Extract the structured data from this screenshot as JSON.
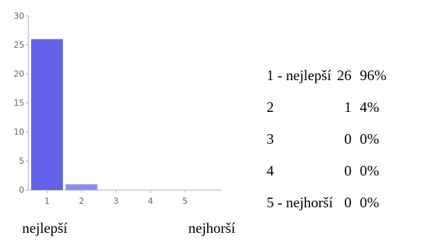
{
  "chart_data": {
    "type": "bar",
    "categories": [
      "1",
      "2",
      "3",
      "4",
      "5"
    ],
    "values": [
      26,
      1,
      0,
      0,
      0
    ],
    "ylim": [
      0,
      30
    ],
    "yticks": [
      0,
      5,
      10,
      15,
      20,
      25,
      30
    ],
    "grid": false,
    "bar_colors": [
      "#6262e8",
      "#8c8cf0",
      "#8c8cf0",
      "#8c8cf0",
      "#8c8cf0"
    ],
    "axis_color": "#aaaaaa",
    "tick_label_color": "#666666"
  },
  "scale_labels": {
    "left": "nejlepší",
    "right": "nejhorší"
  },
  "summary": [
    {
      "label": "1 - nejlepší",
      "count": "26",
      "percent": "96%"
    },
    {
      "label": "2",
      "count": "1",
      "percent": "4%"
    },
    {
      "label": "3",
      "count": "0",
      "percent": "0%"
    },
    {
      "label": "4",
      "count": "0",
      "percent": "0%"
    },
    {
      "label": "5 - nejhorší",
      "count": "0",
      "percent": "0%"
    }
  ]
}
